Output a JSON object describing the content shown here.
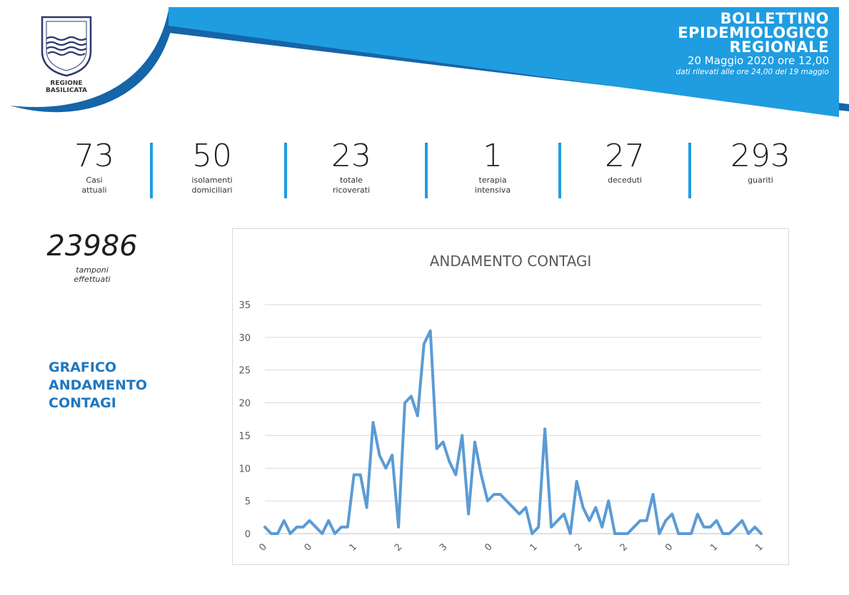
{
  "header": {
    "region_name": "REGIONE\nBASILICATA",
    "title": "BOLLETTINO\nEPIDEMIOLOGICO\nREGIONALE",
    "date": "20 Maggio 2020 ore 12,00",
    "note": "dati rilevati alle ore 24,00 del 19 maggio"
  },
  "stats": [
    {
      "value": "73",
      "label": "Casi\nattuali"
    },
    {
      "value": "50",
      "label": "isolamenti\ndomiciliari"
    },
    {
      "value": "23",
      "label": "totale\nricoverati"
    },
    {
      "value": "1",
      "label": "terapia\nintensiva"
    },
    {
      "value": "27",
      "label": "deceduti"
    },
    {
      "value": "293",
      "label": "guariti"
    }
  ],
  "tamponi": {
    "value": "23986",
    "label": "tamponi\neffettuati"
  },
  "side_title": "GRAFICO\nANDAMENTO\nCONTAGI",
  "colors": {
    "banner": "#1f9de0",
    "banner_dark": "#1565a8",
    "accent": "#1f78bf",
    "series": "#5b9bd5"
  },
  "chart_data": {
    "type": "line",
    "title": "ANDAMENTO CONTAGI",
    "ylim": [
      0,
      35
    ],
    "yticks": [
      0,
      5,
      10,
      15,
      20,
      25,
      30,
      35
    ],
    "xtick_labels": [
      "0",
      "0",
      "1",
      "2",
      "3",
      "0",
      "1",
      "2",
      "2",
      "0",
      "1",
      "1"
    ],
    "grid": true,
    "values": [
      1,
      0,
      0,
      2,
      0,
      1,
      1,
      2,
      1,
      0,
      2,
      0,
      1,
      1,
      9,
      9,
      4,
      17,
      12,
      10,
      12,
      1,
      20,
      21,
      18,
      29,
      31,
      13,
      14,
      11,
      9,
      15,
      3,
      14,
      9,
      5,
      6,
      6,
      5,
      4,
      3,
      4,
      0,
      1,
      16,
      1,
      2,
      3,
      0,
      8,
      4,
      2,
      4,
      1,
      5,
      0,
      0,
      0,
      1,
      2,
      2,
      6,
      0,
      2,
      3,
      0,
      0,
      0,
      3,
      1,
      1,
      2,
      0,
      0,
      1,
      2,
      0,
      1,
      0
    ]
  }
}
